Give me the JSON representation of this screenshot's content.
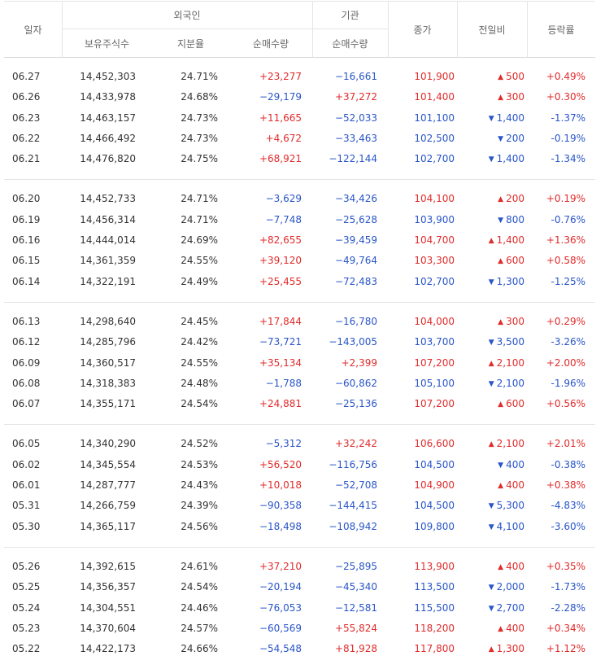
{
  "header": {
    "date": "일자",
    "foreign": "외국인",
    "institution": "기관",
    "holdings": "보유주식수",
    "ratio": "지분율",
    "foreign_net": "순매수량",
    "inst_net": "순매수량",
    "close": "종가",
    "change": "전일비",
    "rate": "등락률"
  },
  "colors": {
    "up": "#e12b2b",
    "down": "#2955c8"
  },
  "groups": [
    {
      "rows": [
        {
          "date": "06.27",
          "holdings": "14,452,303",
          "ratio": "24.71%",
          "foreign_net": "+23,277",
          "inst_net": "−16,661",
          "close": "101,900",
          "dir": "up",
          "change": "500",
          "rate": "+0.49%"
        },
        {
          "date": "06.26",
          "holdings": "14,433,978",
          "ratio": "24.68%",
          "foreign_net": "−29,179",
          "inst_net": "+37,272",
          "close": "101,400",
          "dir": "up",
          "change": "300",
          "rate": "+0.30%"
        },
        {
          "date": "06.23",
          "holdings": "14,463,157",
          "ratio": "24.73%",
          "foreign_net": "+11,665",
          "inst_net": "−52,033",
          "close": "101,100",
          "dir": "down",
          "change": "1,400",
          "rate": "-1.37%"
        },
        {
          "date": "06.22",
          "holdings": "14,466,492",
          "ratio": "24.73%",
          "foreign_net": "+4,672",
          "inst_net": "−33,463",
          "close": "102,500",
          "dir": "down",
          "change": "200",
          "rate": "-0.19%"
        },
        {
          "date": "06.21",
          "holdings": "14,476,820",
          "ratio": "24.75%",
          "foreign_net": "+68,921",
          "inst_net": "−122,144",
          "close": "102,700",
          "dir": "down",
          "change": "1,400",
          "rate": "-1.34%"
        }
      ]
    },
    {
      "rows": [
        {
          "date": "06.20",
          "holdings": "14,452,733",
          "ratio": "24.71%",
          "foreign_net": "−3,629",
          "inst_net": "−34,426",
          "close": "104,100",
          "dir": "up",
          "change": "200",
          "rate": "+0.19%"
        },
        {
          "date": "06.19",
          "holdings": "14,456,314",
          "ratio": "24.71%",
          "foreign_net": "−7,748",
          "inst_net": "−25,628",
          "close": "103,900",
          "dir": "down",
          "change": "800",
          "rate": "-0.76%"
        },
        {
          "date": "06.16",
          "holdings": "14,444,014",
          "ratio": "24.69%",
          "foreign_net": "+82,655",
          "inst_net": "−39,459",
          "close": "104,700",
          "dir": "up",
          "change": "1,400",
          "rate": "+1.36%"
        },
        {
          "date": "06.15",
          "holdings": "14,361,359",
          "ratio": "24.55%",
          "foreign_net": "+39,120",
          "inst_net": "−49,764",
          "close": "103,300",
          "dir": "up",
          "change": "600",
          "rate": "+0.58%"
        },
        {
          "date": "06.14",
          "holdings": "14,322,191",
          "ratio": "24.49%",
          "foreign_net": "+25,455",
          "inst_net": "−72,483",
          "close": "102,700",
          "dir": "down",
          "change": "1,300",
          "rate": "-1.25%"
        }
      ]
    },
    {
      "rows": [
        {
          "date": "06.13",
          "holdings": "14,298,640",
          "ratio": "24.45%",
          "foreign_net": "+17,844",
          "inst_net": "−16,780",
          "close": "104,000",
          "dir": "up",
          "change": "300",
          "rate": "+0.29%"
        },
        {
          "date": "06.12",
          "holdings": "14,285,796",
          "ratio": "24.42%",
          "foreign_net": "−73,721",
          "inst_net": "−143,005",
          "close": "103,700",
          "dir": "down",
          "change": "3,500",
          "rate": "-3.26%"
        },
        {
          "date": "06.09",
          "holdings": "14,360,517",
          "ratio": "24.55%",
          "foreign_net": "+35,134",
          "inst_net": "+2,399",
          "close": "107,200",
          "dir": "up",
          "change": "2,100",
          "rate": "+2.00%"
        },
        {
          "date": "06.08",
          "holdings": "14,318,383",
          "ratio": "24.48%",
          "foreign_net": "−1,788",
          "inst_net": "−60,862",
          "close": "105,100",
          "dir": "down",
          "change": "2,100",
          "rate": "-1.96%"
        },
        {
          "date": "06.07",
          "holdings": "14,355,171",
          "ratio": "24.54%",
          "foreign_net": "+24,881",
          "inst_net": "−25,136",
          "close": "107,200",
          "dir": "up",
          "change": "600",
          "rate": "+0.56%"
        }
      ]
    },
    {
      "rows": [
        {
          "date": "06.05",
          "holdings": "14,340,290",
          "ratio": "24.52%",
          "foreign_net": "−5,312",
          "inst_net": "+32,242",
          "close": "106,600",
          "dir": "up",
          "change": "2,100",
          "rate": "+2.01%"
        },
        {
          "date": "06.02",
          "holdings": "14,345,554",
          "ratio": "24.53%",
          "foreign_net": "+56,520",
          "inst_net": "−116,756",
          "close": "104,500",
          "dir": "down",
          "change": "400",
          "rate": "-0.38%"
        },
        {
          "date": "06.01",
          "holdings": "14,287,777",
          "ratio": "24.43%",
          "foreign_net": "+10,018",
          "inst_net": "−52,708",
          "close": "104,900",
          "dir": "up",
          "change": "400",
          "rate": "+0.38%"
        },
        {
          "date": "05.31",
          "holdings": "14,266,759",
          "ratio": "24.39%",
          "foreign_net": "−90,358",
          "inst_net": "−144,415",
          "close": "104,500",
          "dir": "down",
          "change": "5,300",
          "rate": "-4.83%"
        },
        {
          "date": "05.30",
          "holdings": "14,365,117",
          "ratio": "24.56%",
          "foreign_net": "−18,498",
          "inst_net": "−108,942",
          "close": "109,800",
          "dir": "down",
          "change": "4,100",
          "rate": "-3.60%"
        }
      ]
    },
    {
      "rows": [
        {
          "date": "05.26",
          "holdings": "14,392,615",
          "ratio": "24.61%",
          "foreign_net": "+37,210",
          "inst_net": "−25,895",
          "close": "113,900",
          "dir": "up",
          "change": "400",
          "rate": "+0.35%"
        },
        {
          "date": "05.25",
          "holdings": "14,356,357",
          "ratio": "24.54%",
          "foreign_net": "−20,194",
          "inst_net": "−45,340",
          "close": "113,500",
          "dir": "down",
          "change": "2,000",
          "rate": "-1.73%"
        },
        {
          "date": "05.24",
          "holdings": "14,304,551",
          "ratio": "24.46%",
          "foreign_net": "−76,053",
          "inst_net": "−12,581",
          "close": "115,500",
          "dir": "down",
          "change": "2,700",
          "rate": "-2.28%"
        },
        {
          "date": "05.23",
          "holdings": "14,370,604",
          "ratio": "24.57%",
          "foreign_net": "−60,569",
          "inst_net": "+55,824",
          "close": "118,200",
          "dir": "up",
          "change": "400",
          "rate": "+0.34%"
        },
        {
          "date": "05.22",
          "holdings": "14,422,173",
          "ratio": "24.66%",
          "foreign_net": "−54,548",
          "inst_net": "+81,928",
          "close": "117,800",
          "dir": "up",
          "change": "1,300",
          "rate": "+1.12%"
        }
      ]
    }
  ]
}
